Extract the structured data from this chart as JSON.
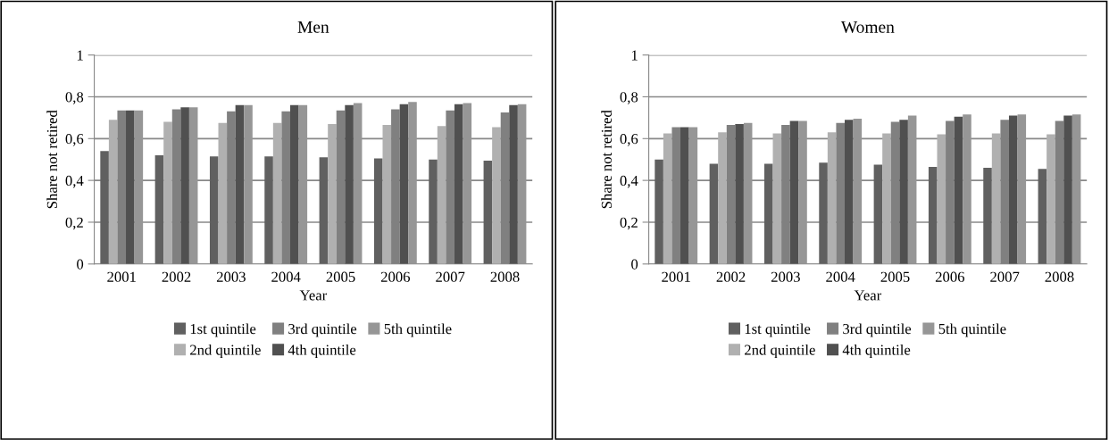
{
  "chart_data": [
    {
      "type": "bar",
      "title": "Men",
      "xlabel": "Year",
      "ylabel": "Share not retired",
      "categories": [
        "2001",
        "2002",
        "2003",
        "2004",
        "2005",
        "2006",
        "2007",
        "2008"
      ],
      "series": [
        {
          "name": "1st quintile",
          "color": "#606060",
          "values": [
            0.54,
            0.52,
            0.515,
            0.515,
            0.51,
            0.505,
            0.5,
            0.495
          ]
        },
        {
          "name": "2nd quintile",
          "color": "#b0b0b0",
          "values": [
            0.69,
            0.68,
            0.675,
            0.675,
            0.67,
            0.665,
            0.66,
            0.655
          ]
        },
        {
          "name": "3rd quintile",
          "color": "#808080",
          "values": [
            0.735,
            0.74,
            0.73,
            0.73,
            0.735,
            0.74,
            0.735,
            0.725
          ]
        },
        {
          "name": "4th quintile",
          "color": "#505050",
          "values": [
            0.735,
            0.75,
            0.76,
            0.76,
            0.76,
            0.765,
            0.765,
            0.76
          ]
        },
        {
          "name": "5th quintile",
          "color": "#969696",
          "values": [
            0.735,
            0.75,
            0.76,
            0.76,
            0.77,
            0.775,
            0.77,
            0.765
          ]
        }
      ],
      "ylim": [
        0,
        1
      ],
      "yticks": [
        0,
        {
          "value": 0.2,
          "label": "0,2"
        },
        {
          "value": 0.4,
          "label": "0,4"
        },
        {
          "value": 0.6,
          "label": "0,6"
        },
        {
          "value": 0.8,
          "label": "0,8"
        },
        1
      ],
      "grid": "y",
      "legend": "bottom"
    },
    {
      "type": "bar",
      "title": "Women",
      "xlabel": "Year",
      "ylabel": "Share not retired",
      "categories": [
        "2001",
        "2002",
        "2003",
        "2004",
        "2005",
        "2006",
        "2007",
        "2008"
      ],
      "series": [
        {
          "name": "1st quintile",
          "color": "#606060",
          "values": [
            0.5,
            0.48,
            0.48,
            0.485,
            0.475,
            0.465,
            0.46,
            0.455
          ]
        },
        {
          "name": "2nd quintile",
          "color": "#b0b0b0",
          "values": [
            0.625,
            0.63,
            0.625,
            0.63,
            0.625,
            0.62,
            0.625,
            0.62
          ]
        },
        {
          "name": "3rd quintile",
          "color": "#808080",
          "values": [
            0.655,
            0.665,
            0.665,
            0.675,
            0.68,
            0.685,
            0.69,
            0.685
          ]
        },
        {
          "name": "4th quintile",
          "color": "#505050",
          "values": [
            0.655,
            0.67,
            0.685,
            0.69,
            0.69,
            0.705,
            0.71,
            0.71
          ]
        },
        {
          "name": "5th quintile",
          "color": "#969696",
          "values": [
            0.655,
            0.675,
            0.685,
            0.695,
            0.71,
            0.715,
            0.715,
            0.715
          ]
        }
      ],
      "ylim": [
        0,
        1
      ],
      "yticks": [
        0,
        {
          "value": 0.2,
          "label": "0,2"
        },
        {
          "value": 0.4,
          "label": "0,4"
        },
        {
          "value": 0.6,
          "label": "0,6"
        },
        {
          "value": 0.8,
          "label": "0,8"
        },
        1
      ],
      "grid": "y",
      "legend": "bottom"
    }
  ]
}
